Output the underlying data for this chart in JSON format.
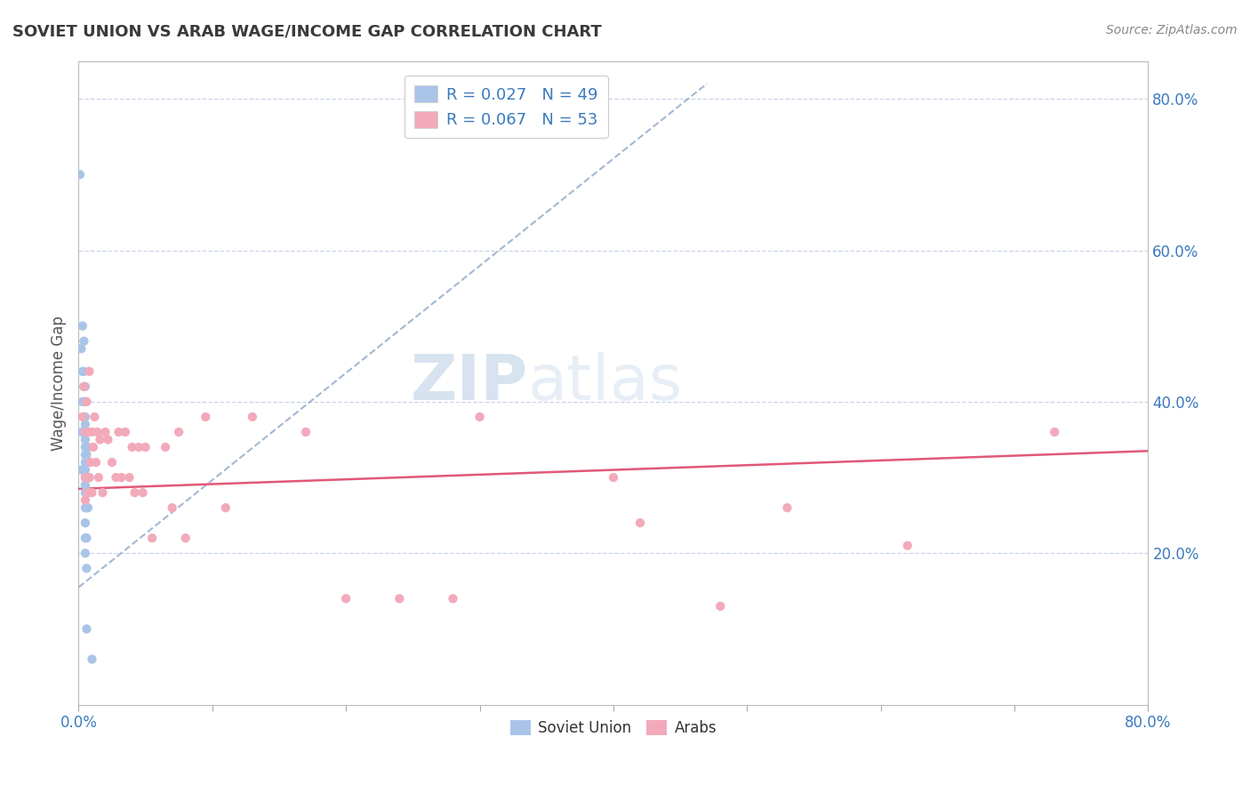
{
  "title": "SOVIET UNION VS ARAB WAGE/INCOME GAP CORRELATION CHART",
  "source": "Source: ZipAtlas.com",
  "ylabel": "Wage/Income Gap",
  "xlim": [
    0.0,
    0.8
  ],
  "ylim": [
    0.0,
    0.85
  ],
  "right_yticks": [
    0.2,
    0.4,
    0.6,
    0.8
  ],
  "right_yticklabels": [
    "20.0%",
    "40.0%",
    "60.0%",
    "80.0%"
  ],
  "soviet_color": "#aac4e8",
  "arab_color": "#f2aaba",
  "soviet_R": 0.027,
  "soviet_N": 49,
  "arab_R": 0.067,
  "arab_N": 53,
  "legend_text_color": "#3a7abf",
  "title_color": "#3a3a3a",
  "watermark_zip": "ZIP",
  "watermark_atlas": "atlas",
  "background_color": "#ffffff",
  "grid_color": "#c8d4e8",
  "trend_gray_color": "#9ab0cc",
  "trend_pink_color": "#e05878",
  "soviet_scatter_x": [
    0.001,
    0.002,
    0.002,
    0.002,
    0.003,
    0.003,
    0.003,
    0.003,
    0.004,
    0.004,
    0.004,
    0.004,
    0.004,
    0.004,
    0.005,
    0.005,
    0.005,
    0.005,
    0.005,
    0.005,
    0.005,
    0.005,
    0.005,
    0.005,
    0.005,
    0.005,
    0.005,
    0.005,
    0.005,
    0.005,
    0.005,
    0.006,
    0.006,
    0.006,
    0.006,
    0.006,
    0.006,
    0.006,
    0.006,
    0.006,
    0.006,
    0.007,
    0.007,
    0.007,
    0.007,
    0.007,
    0.008,
    0.008,
    0.01
  ],
  "soviet_scatter_y": [
    0.7,
    0.47,
    0.36,
    0.31,
    0.5,
    0.44,
    0.4,
    0.36,
    0.48,
    0.44,
    0.42,
    0.4,
    0.38,
    0.36,
    0.42,
    0.4,
    0.38,
    0.37,
    0.36,
    0.35,
    0.34,
    0.33,
    0.32,
    0.31,
    0.3,
    0.29,
    0.28,
    0.26,
    0.24,
    0.22,
    0.2,
    0.36,
    0.34,
    0.33,
    0.32,
    0.3,
    0.28,
    0.26,
    0.22,
    0.18,
    0.1,
    0.34,
    0.32,
    0.3,
    0.28,
    0.26,
    0.3,
    0.28,
    0.06
  ],
  "arab_scatter_x": [
    0.003,
    0.004,
    0.005,
    0.005,
    0.005,
    0.006,
    0.006,
    0.007,
    0.007,
    0.008,
    0.008,
    0.009,
    0.01,
    0.01,
    0.011,
    0.012,
    0.013,
    0.014,
    0.015,
    0.016,
    0.018,
    0.02,
    0.022,
    0.025,
    0.028,
    0.03,
    0.032,
    0.035,
    0.038,
    0.04,
    0.042,
    0.045,
    0.048,
    0.05,
    0.055,
    0.065,
    0.07,
    0.075,
    0.08,
    0.095,
    0.11,
    0.13,
    0.17,
    0.2,
    0.24,
    0.28,
    0.3,
    0.4,
    0.42,
    0.48,
    0.53,
    0.62,
    0.73
  ],
  "arab_scatter_y": [
    0.38,
    0.42,
    0.36,
    0.3,
    0.27,
    0.4,
    0.3,
    0.36,
    0.28,
    0.44,
    0.3,
    0.32,
    0.36,
    0.28,
    0.34,
    0.38,
    0.32,
    0.36,
    0.3,
    0.35,
    0.28,
    0.36,
    0.35,
    0.32,
    0.3,
    0.36,
    0.3,
    0.36,
    0.3,
    0.34,
    0.28,
    0.34,
    0.28,
    0.34,
    0.22,
    0.34,
    0.26,
    0.36,
    0.22,
    0.38,
    0.26,
    0.38,
    0.36,
    0.14,
    0.14,
    0.14,
    0.38,
    0.3,
    0.24,
    0.13,
    0.26,
    0.21,
    0.36
  ],
  "soviet_trend_x": [
    0.0,
    0.47
  ],
  "soviet_trend_y": [
    0.155,
    0.82
  ],
  "arab_trend_x": [
    0.0,
    0.8
  ],
  "arab_trend_y": [
    0.285,
    0.335
  ]
}
